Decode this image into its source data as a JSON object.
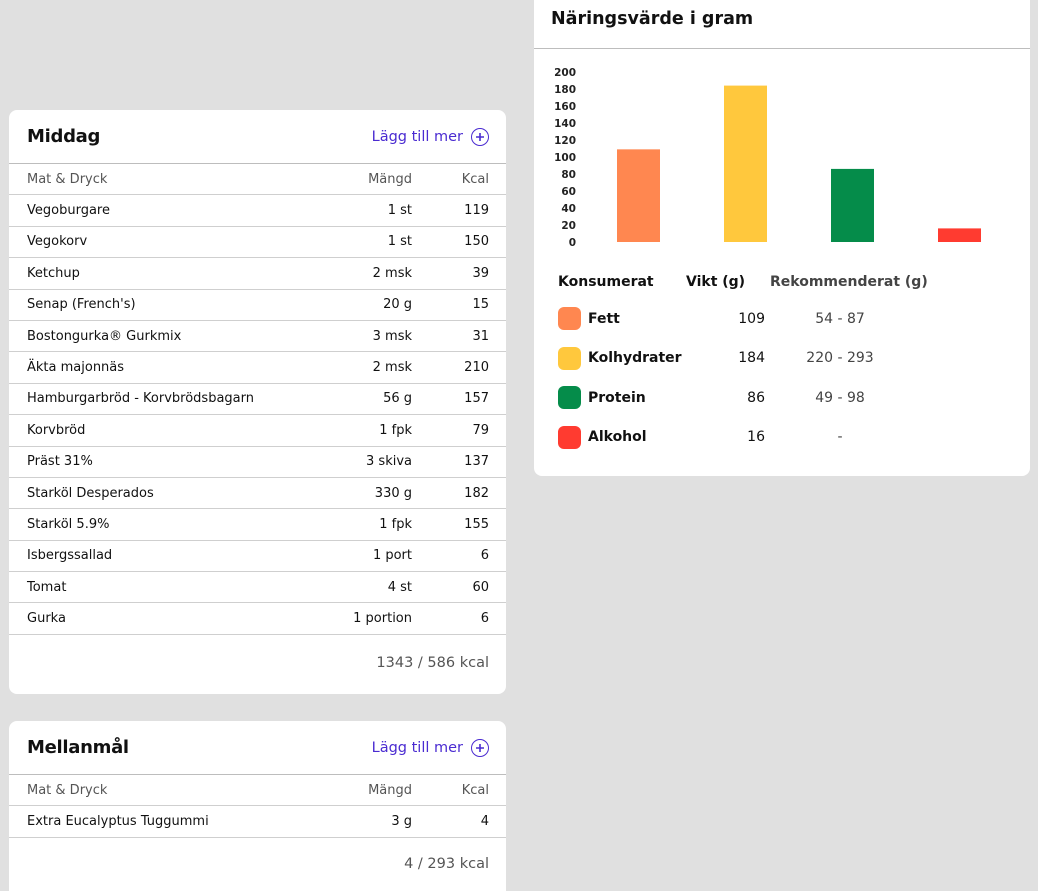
{
  "chart": {
    "title": "Näringsvärde i gram",
    "chart_data": {
      "type": "bar",
      "categories": [
        "Fett",
        "Kolhydrater",
        "Protein",
        "Alkohol"
      ],
      "values": [
        109,
        184,
        86,
        16
      ],
      "colors": [
        "#ff8750",
        "#ffc83d",
        "#058c4a",
        "#ff3b30"
      ],
      "ylim": [
        0,
        200
      ],
      "yticks": [
        200,
        180,
        160,
        140,
        120,
        100,
        80,
        60,
        40,
        20,
        0
      ],
      "grid": false
    },
    "legend": {
      "headers": {
        "consumed": "Konsumerat",
        "weight": "Vikt (g)",
        "recommended": "Rekommenderat (g)"
      },
      "rows": [
        {
          "name": "Fett",
          "weight": "109",
          "recommended": "54 - 87",
          "color": "#ff8750"
        },
        {
          "name": "Kolhydrater",
          "weight": "184",
          "recommended": "220 - 293",
          "color": "#ffc83d"
        },
        {
          "name": "Protein",
          "weight": "86",
          "recommended": "49 - 98",
          "color": "#058c4a"
        },
        {
          "name": "Alkohol",
          "weight": "16",
          "recommended": "-",
          "color": "#ff3b30"
        }
      ]
    }
  },
  "middag": {
    "title": "Middag",
    "add_label": "Lägg till mer",
    "headers": {
      "name": "Mat & Dryck",
      "amount": "Mängd",
      "kcal": "Kcal"
    },
    "rows": [
      {
        "name": "Vegoburgare",
        "amount": "1 st",
        "kcal": "119"
      },
      {
        "name": "Vegokorv",
        "amount": "1 st",
        "kcal": "150"
      },
      {
        "name": "Ketchup",
        "amount": "2 msk",
        "kcal": "39"
      },
      {
        "name": "Senap (French's)",
        "amount": "20 g",
        "kcal": "15"
      },
      {
        "name": "Bostongurka® Gurkmix",
        "amount": "3 msk",
        "kcal": "31"
      },
      {
        "name": "Äkta majonnäs",
        "amount": "2 msk",
        "kcal": "210"
      },
      {
        "name": "Hamburgarbröd - Korvbrödsbagarn",
        "amount": "56 g",
        "kcal": "157"
      },
      {
        "name": "Korvbröd",
        "amount": "1 fpk",
        "kcal": "79"
      },
      {
        "name": "Präst 31%",
        "amount": "3 skiva",
        "kcal": "137"
      },
      {
        "name": "Starköl Desperados",
        "amount": "330 g",
        "kcal": "182"
      },
      {
        "name": "Starköl 5.9%",
        "amount": "1 fpk",
        "kcal": "155"
      },
      {
        "name": "Isbergssallad",
        "amount": "1 port",
        "kcal": "6"
      },
      {
        "name": "Tomat",
        "amount": "4 st",
        "kcal": "60"
      },
      {
        "name": "Gurka",
        "amount": "1 portion",
        "kcal": "6"
      }
    ],
    "total": "1343 / 586 kcal"
  },
  "mellanmal": {
    "title": "Mellanmål",
    "add_label": "Lägg till mer",
    "headers": {
      "name": "Mat & Dryck",
      "amount": "Mängd",
      "kcal": "Kcal"
    },
    "rows": [
      {
        "name": "Extra Eucalyptus Tuggummi",
        "amount": "3 g",
        "kcal": "4"
      }
    ],
    "total": "4 / 293 kcal"
  }
}
